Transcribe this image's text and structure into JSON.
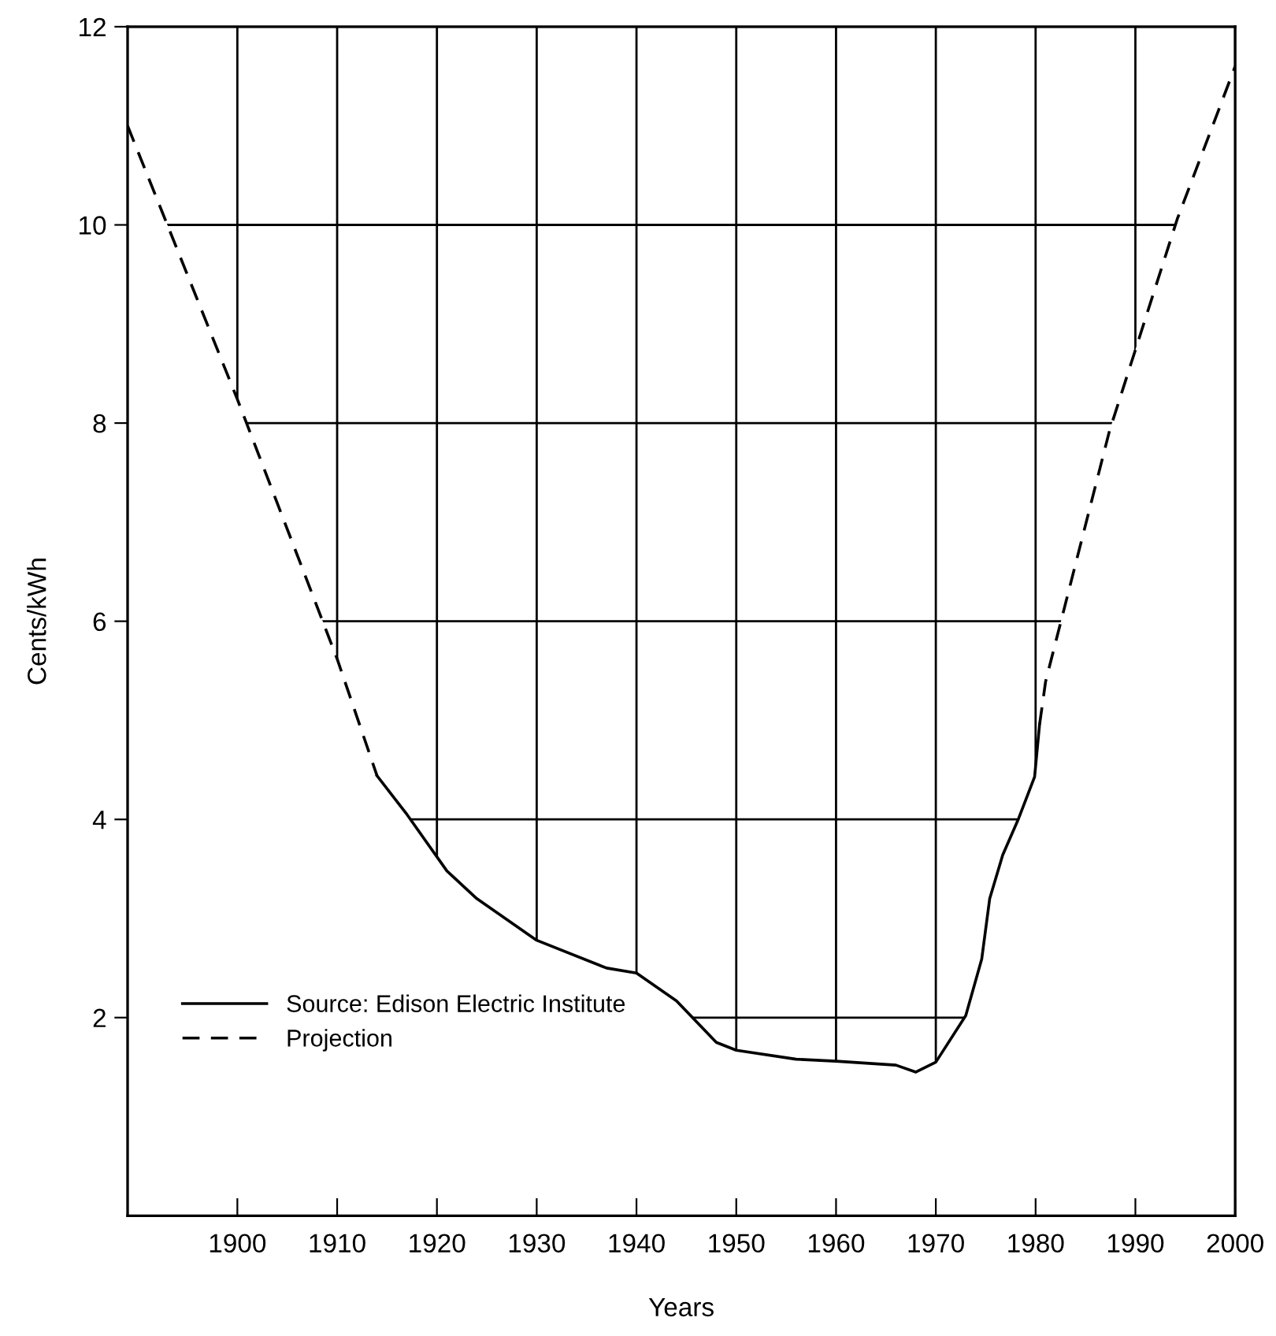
{
  "chart_data": {
    "type": "line",
    "xlabel": "Years",
    "ylabel": "Cents/kWh",
    "xlim": [
      1889,
      2000
    ],
    "ylim": [
      0,
      12
    ],
    "xticks": [
      1900,
      1910,
      1920,
      1930,
      1940,
      1950,
      1960,
      1970,
      1980,
      1990,
      2000
    ],
    "yticks": [
      2,
      4,
      6,
      8,
      10,
      12
    ],
    "grid": true,
    "legend": "bottom left",
    "series": [
      {
        "name": "Source: Edison Electric Institute",
        "color": "#000000",
        "line_style": "solid",
        "x": [
          1914,
          1917,
          1921,
          1924,
          1930,
          1937,
          1940,
          1944,
          1948,
          1950,
          1956,
          1960,
          1966,
          1968,
          1970,
          1973,
          1974.6,
          1975.4,
          1976.7,
          1978.3,
          1979.9,
          1980.4
        ],
        "values": [
          4.44,
          4.05,
          3.48,
          3.2,
          2.78,
          2.5,
          2.45,
          2.17,
          1.75,
          1.67,
          1.58,
          1.56,
          1.52,
          1.45,
          1.55,
          2.02,
          2.59,
          3.2,
          3.64,
          4.01,
          4.43,
          4.96
        ]
      },
      {
        "name": "Projection",
        "color": "#000000",
        "line_style": "dashed",
        "x": [
          1889,
          1900,
          1910,
          1914,
          null,
          1980.4,
          1981,
          1987.4,
          1994.2,
          2000
        ],
        "values": [
          11.0,
          8.24,
          5.62,
          4.44,
          null,
          4.96,
          5.39,
          7.92,
          10.06,
          11.6
        ]
      }
    ]
  }
}
